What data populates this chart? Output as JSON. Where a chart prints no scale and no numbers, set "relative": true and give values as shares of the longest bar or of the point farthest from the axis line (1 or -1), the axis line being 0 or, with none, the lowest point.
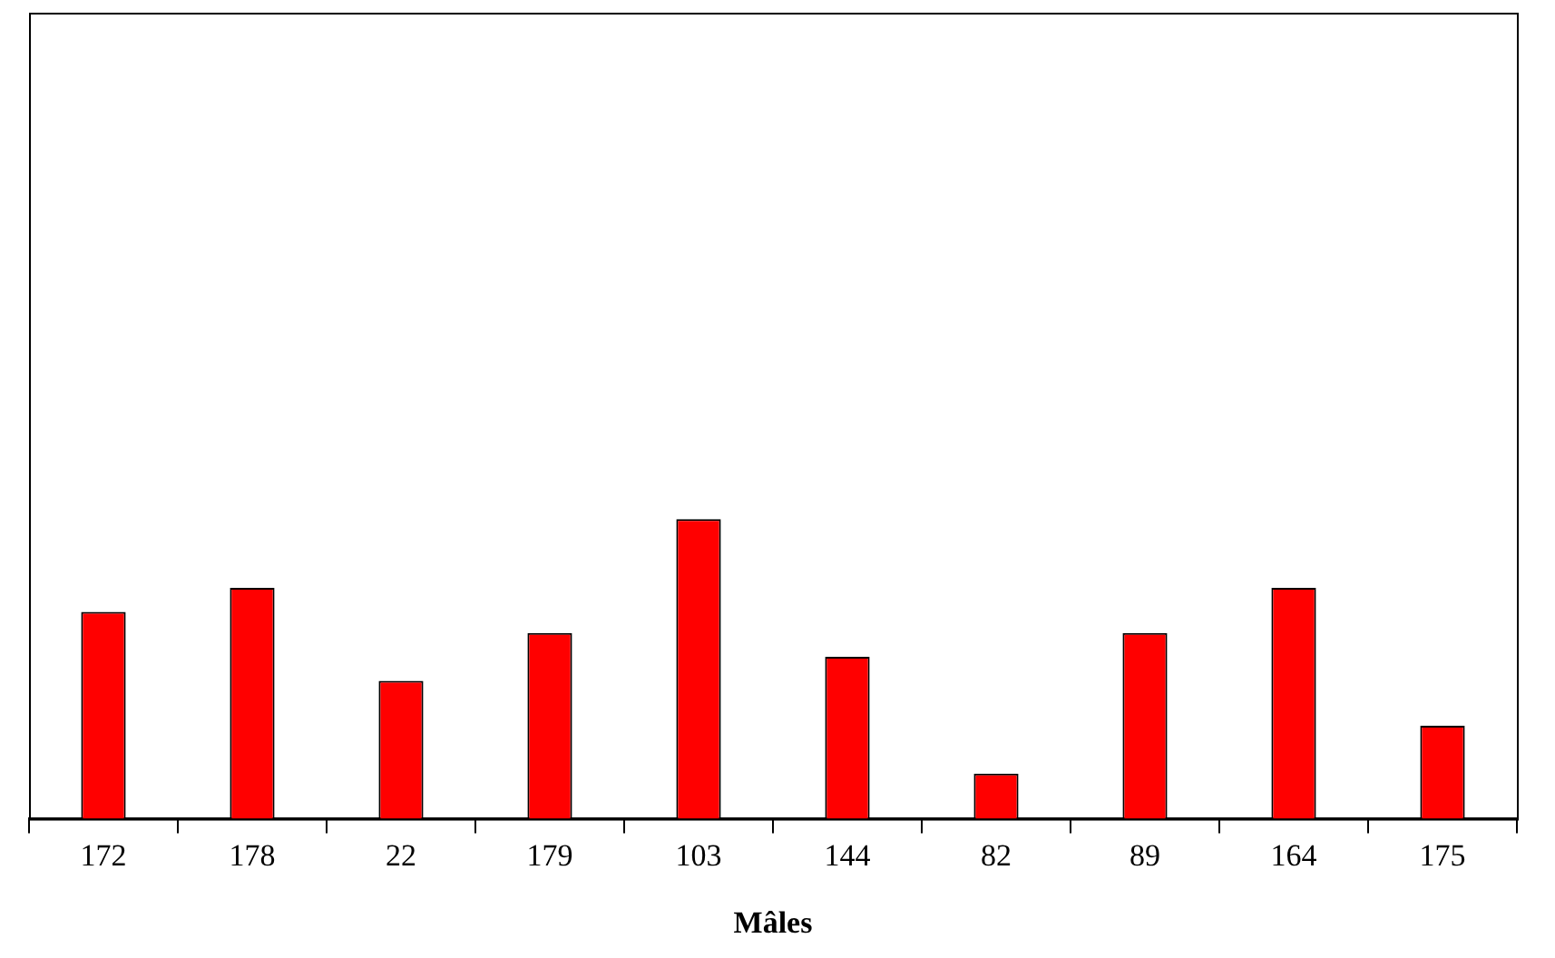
{
  "chart_data": {
    "type": "bar",
    "xlabel": "Mâles",
    "relative": true,
    "grid": false,
    "legend": false,
    "categories": [
      "172",
      "178",
      "22",
      "179",
      "103",
      "144",
      "82",
      "89",
      "164",
      "175"
    ],
    "values": [
      0.69,
      0.77,
      0.46,
      0.62,
      1,
      0.54,
      0.15,
      0.62,
      0.77,
      0.31
    ],
    "color": "#ff0000"
  }
}
